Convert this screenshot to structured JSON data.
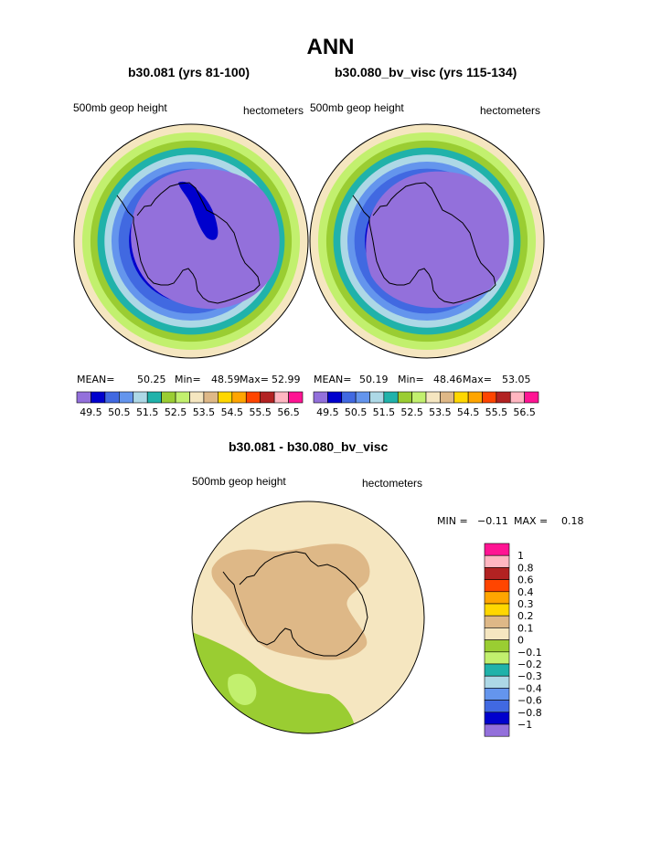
{
  "title": "ANN",
  "chart_data": [
    {
      "type": "heatmap",
      "projection": "south-polar-stereographic",
      "title": "b30.081 (yrs 81-100)",
      "left_label": "500mb geop height",
      "right_label": "hectometers",
      "stats": {
        "mean_label": "MEAN=",
        "mean": "50.25",
        "min_label": "Min=",
        "min": "48.59",
        "max_label": "Max=",
        "max": "52.99"
      },
      "colorbar": {
        "tick_labels": [
          "49.5",
          "50.5",
          "51.5",
          "52.5",
          "53.5",
          "54.5",
          "55.5",
          "56.5"
        ],
        "levels": [
          49.5,
          50,
          50.5,
          51,
          51.5,
          52,
          52.5,
          53,
          53.5,
          54,
          54.5,
          55,
          55.5,
          56,
          56.5
        ]
      }
    },
    {
      "type": "heatmap",
      "projection": "south-polar-stereographic",
      "title": "b30.080_bv_visc (yrs 115-134)",
      "left_label": "500mb geop height",
      "right_label": "hectometers",
      "stats": {
        "mean_label": "MEAN=",
        "mean": "50.19",
        "min_label": "Min=",
        "min": "48.46",
        "max_label": "Max=",
        "max": "53.05"
      },
      "colorbar": {
        "tick_labels": [
          "49.5",
          "50.5",
          "51.5",
          "52.5",
          "53.5",
          "54.5",
          "55.5",
          "56.5"
        ],
        "levels": [
          49.5,
          50,
          50.5,
          51,
          51.5,
          52,
          52.5,
          53,
          53.5,
          54,
          54.5,
          55,
          55.5,
          56,
          56.5
        ]
      }
    },
    {
      "type": "heatmap",
      "projection": "south-polar-stereographic",
      "title": "b30.081 - b30.080_bv_visc",
      "left_label": "500mb geop height",
      "right_label": "hectometers",
      "stats": {
        "min_label": "MIN =",
        "min": "−0.11",
        "max_label": "MAX =",
        "max": "0.18"
      },
      "colorbar": {
        "tick_labels": [
          "1",
          "0.8",
          "0.6",
          "0.4",
          "0.3",
          "0.2",
          "0.1",
          "0",
          "−0.1",
          "−0.2",
          "−0.3",
          "−0.4",
          "−0.6",
          "−0.8",
          "−1"
        ],
        "levels": [
          1,
          0.8,
          0.6,
          0.4,
          0.3,
          0.2,
          0.1,
          0,
          -0.1,
          -0.2,
          -0.3,
          -0.4,
          -0.6,
          -0.8,
          -1
        ]
      }
    }
  ],
  "colors": {
    "abs_palette": [
      "#9370db",
      "#0000cd",
      "#4169e1",
      "#6495ed",
      "#add8e6",
      "#20b2aa",
      "#9acd32",
      "#c2f06e",
      "#f5e6c0",
      "#deb887",
      "#ffd700",
      "#ffa500",
      "#ff4500",
      "#b22222",
      "#ffb6c1",
      "#ff1493"
    ],
    "diff_palette": [
      "#ff1493",
      "#ffb6c1",
      "#b22222",
      "#ff4500",
      "#ffa500",
      "#ffd700",
      "#deb887",
      "#f5e6c0",
      "#9acd32",
      "#c2f06e",
      "#20b2aa",
      "#add8e6",
      "#6495ed",
      "#4169e1",
      "#0000cd",
      "#9370db"
    ]
  }
}
